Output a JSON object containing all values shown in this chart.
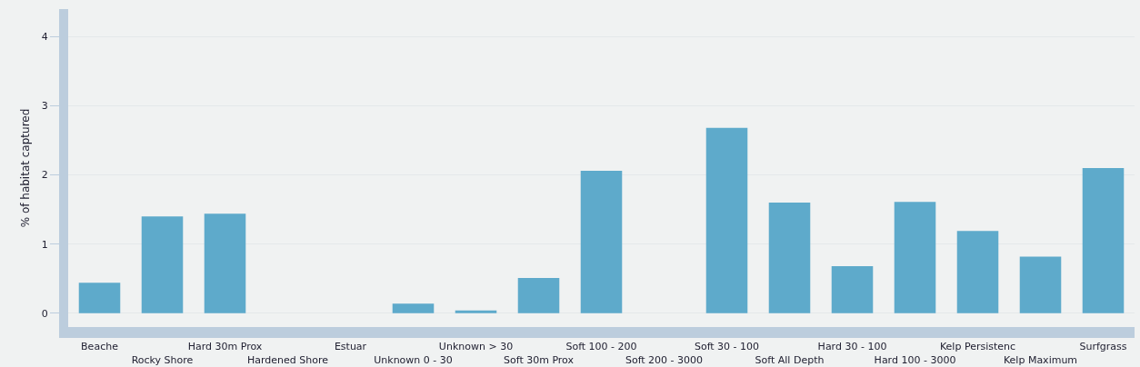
{
  "chart_data": {
    "type": "bar",
    "ylabel": "% of habitat captured",
    "categories": [
      "Beache",
      "Rocky Shore",
      "Hard 30m Prox",
      "Hardened Shore",
      "Estuar",
      "Unknown 0 - 30",
      "Unknown > 30",
      "Soft 30m Prox",
      "Soft 100 - 200",
      "Soft 200 - 3000",
      "Soft 30 - 100",
      "Soft All Depth",
      "Hard 30 - 100",
      "Hard 100 - 3000",
      "Kelp Persistenc",
      "Kelp Maximum",
      "Surfgrass"
    ],
    "values": [
      0.44,
      1.4,
      1.44,
      0,
      0,
      0.14,
      0.04,
      0.51,
      2.06,
      0,
      2.68,
      1.6,
      0.68,
      1.61,
      1.19,
      0.82,
      2.1
    ],
    "color": "#5eaacb",
    "ylim": [
      -0.2,
      4.4
    ],
    "yticks": [
      0,
      1,
      2,
      3,
      4
    ],
    "grid": "y"
  }
}
